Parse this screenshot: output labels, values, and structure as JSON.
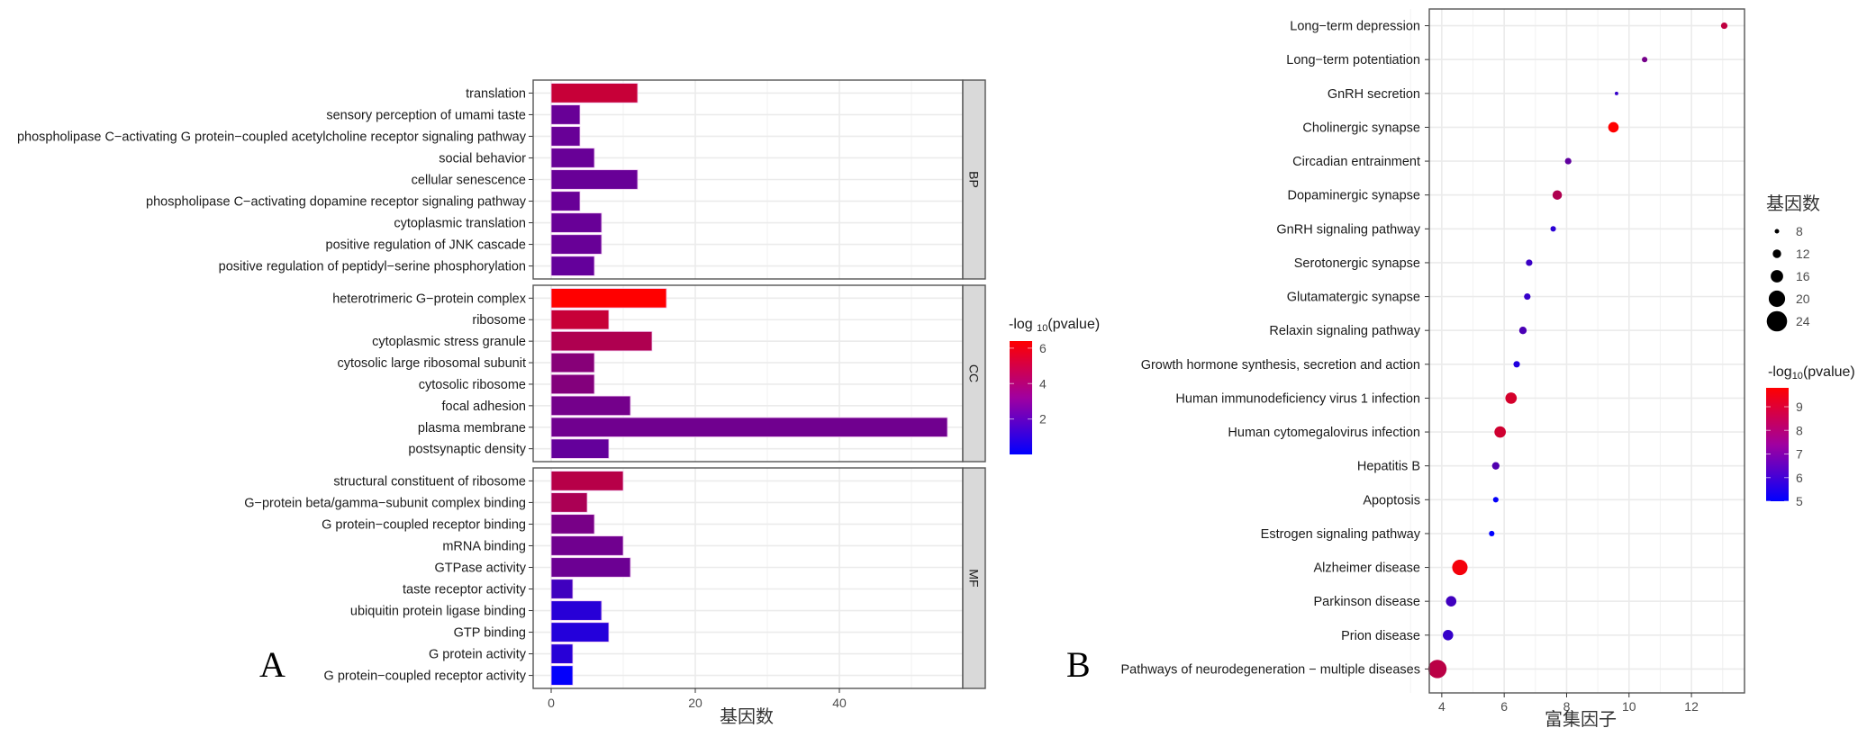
{
  "chart_data": [
    {
      "panel_label": "A",
      "type": "bar",
      "orientation": "horizontal",
      "xlabel": "基因数",
      "ylabel": "",
      "xlim": [
        0,
        57
      ],
      "x_ticks": [
        0,
        20,
        40
      ],
      "grid": true,
      "legend": {
        "title_prefix": "-log",
        "title_sub": "10",
        "title_suffix": "(pvalue)",
        "type": "colorbar",
        "range": [
          0,
          6.4
        ],
        "ticks": [
          2,
          4,
          6
        ],
        "low_color": "#0000ff",
        "high_color": "#ff0000",
        "placement": "right"
      },
      "facets": [
        {
          "name": "BP",
          "categories": [
            "translation",
            "sensory perception of umami taste",
            "phospholipase C−activating G protein−coupled acetylcholine receptor signaling pathway",
            "social behavior",
            "cellular senescence",
            "phospholipase C−activating dopamine receptor signaling pathway",
            "cytoplasmic translation",
            "positive regulation of JNK cascade",
            "positive regulation of peptidyl−serine phosphorylation"
          ],
          "values": [
            12,
            4,
            4,
            6,
            12,
            4,
            7,
            7,
            6
          ],
          "neglog10p": [
            5.0,
            2.6,
            2.6,
            2.6,
            2.6,
            2.6,
            2.6,
            2.6,
            2.5
          ]
        },
        {
          "name": "CC",
          "categories": [
            "heterotrimeric G−protein complex",
            "ribosome",
            "cytoplasmic stress granule",
            "cytosolic large ribosomal subunit",
            "cytosolic ribosome",
            "focal adhesion",
            "plasma membrane",
            "postsynaptic density"
          ],
          "values": [
            16,
            8,
            14,
            6,
            6,
            11,
            55,
            8
          ],
          "neglog10p": [
            6.4,
            5.0,
            4.4,
            3.4,
            3.3,
            2.9,
            2.8,
            2.5
          ]
        },
        {
          "name": "MF",
          "categories": [
            "structural constituent of ribosome",
            "G−protein beta/gamma−subunit complex binding",
            "G protein−coupled receptor binding",
            "mRNA binding",
            "GTPase activity",
            "taste receptor activity",
            "ubiquitin protein ligase binding",
            "GTP binding",
            "G protein activity",
            "G protein−coupled receptor activity"
          ],
          "values": [
            10,
            5,
            6,
            10,
            11,
            3,
            7,
            8,
            3,
            3
          ],
          "neglog10p": [
            4.6,
            4.3,
            3.0,
            2.8,
            2.7,
            1.6,
            1.0,
            0.9,
            1.0,
            0.1
          ]
        }
      ]
    },
    {
      "panel_label": "B",
      "type": "scatter",
      "xlabel": "富集因子",
      "ylabel": "",
      "xlim": [
        3.6,
        13.7
      ],
      "x_ticks": [
        4,
        6,
        8,
        10,
        12
      ],
      "grid": true,
      "categories": [
        "Long−term depression",
        "Long−term potentiation",
        "GnRH secretion",
        "Cholinergic synapse",
        "Circadian entrainment",
        "Dopaminergic synapse",
        "GnRH signaling pathway",
        "Serotonergic synapse",
        "Glutamatergic synapse",
        "Relaxin signaling pathway",
        "Growth hormone synthesis, secretion and action",
        "Human immunodeficiency virus 1 infection",
        "Human cytomegalovirus infection",
        "Hepatitis B",
        "Apoptosis",
        "Estrogen signaling pathway",
        "Alzheimer disease",
        "Parkinson disease",
        "Prion disease",
        "Pathways of neurodegeneration − multiple diseases"
      ],
      "x": [
        13.05,
        10.5,
        9.6,
        9.5,
        8.05,
        7.7,
        7.57,
        6.8,
        6.74,
        6.6,
        6.4,
        6.22,
        5.87,
        5.73,
        5.73,
        5.6,
        4.58,
        4.3,
        4.2,
        3.86
      ],
      "gene_count": [
        10,
        9,
        7,
        14,
        10,
        13,
        9,
        10,
        10,
        11,
        10,
        15,
        15,
        11,
        9,
        9,
        19,
        14,
        14,
        22
      ],
      "neglog10p": [
        8.6,
        7.2,
        6.0,
        9.8,
        6.8,
        8.3,
        5.8,
        6.1,
        6.0,
        6.4,
        5.6,
        9.0,
        8.9,
        6.5,
        5.1,
        5.0,
        9.6,
        6.2,
        6.0,
        8.5
      ],
      "size_legend": {
        "title": "基因数",
        "values": [
          8,
          12,
          16,
          20,
          24
        ]
      },
      "color_legend": {
        "title_prefix": "-log",
        "title_sub": "10",
        "title_suffix": "(pvalue)",
        "type": "colorbar",
        "range": [
          5,
          9.8
        ],
        "ticks": [
          5,
          6,
          7,
          8,
          9
        ],
        "low_color": "#0000ff",
        "high_color": "#ff0000",
        "placement": "right"
      }
    }
  ]
}
